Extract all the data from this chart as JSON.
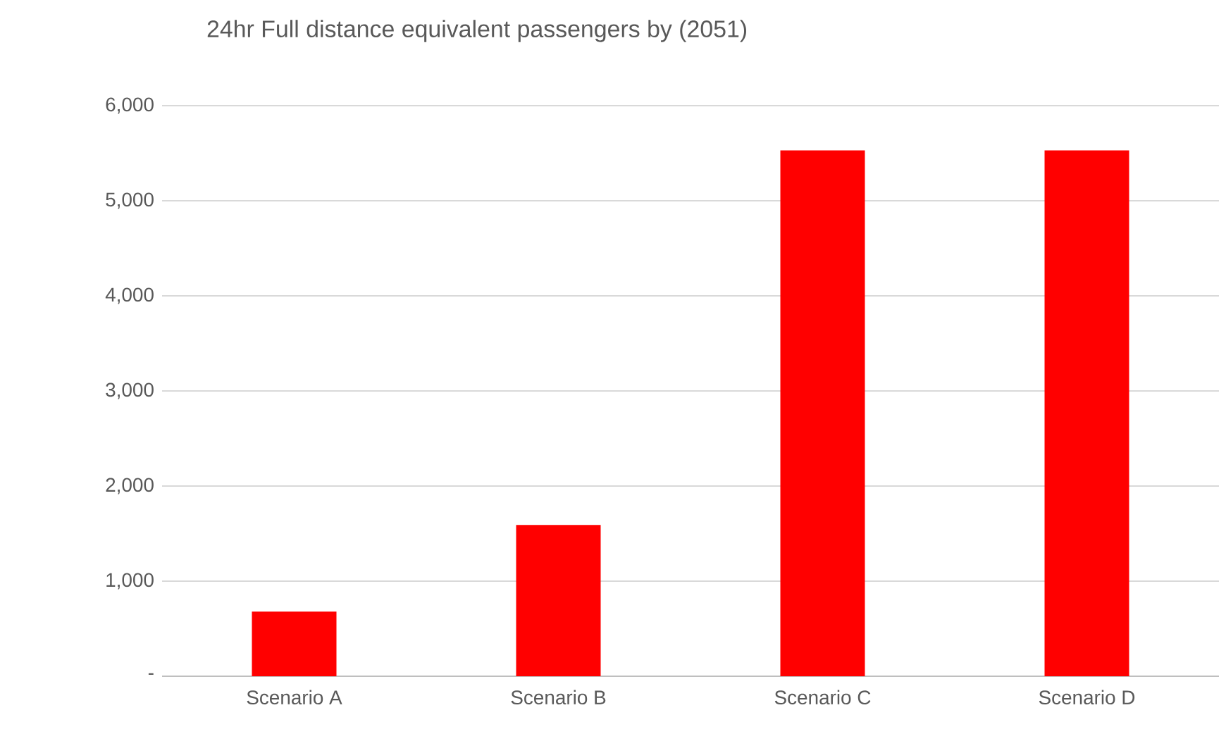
{
  "chart_data": {
    "type": "bar",
    "title": "24hr Full distance equivalent passengers by (2051)",
    "categories": [
      "Scenario A",
      "Scenario B",
      "Scenario C",
      "Scenario D"
    ],
    "values": [
      680,
      1590,
      5530,
      5530
    ],
    "color": "#ff0000",
    "ylim": [
      0,
      6000
    ],
    "yticks": [
      {
        "value": 0,
        "label": "-"
      },
      {
        "value": 1000,
        "label": "1,000"
      },
      {
        "value": 2000,
        "label": "2,000"
      },
      {
        "value": 3000,
        "label": "3,000"
      },
      {
        "value": 4000,
        "label": "4,000"
      },
      {
        "value": 5000,
        "label": "5,000"
      },
      {
        "value": 6000,
        "label": "6,000"
      }
    ],
    "grid": "y"
  }
}
